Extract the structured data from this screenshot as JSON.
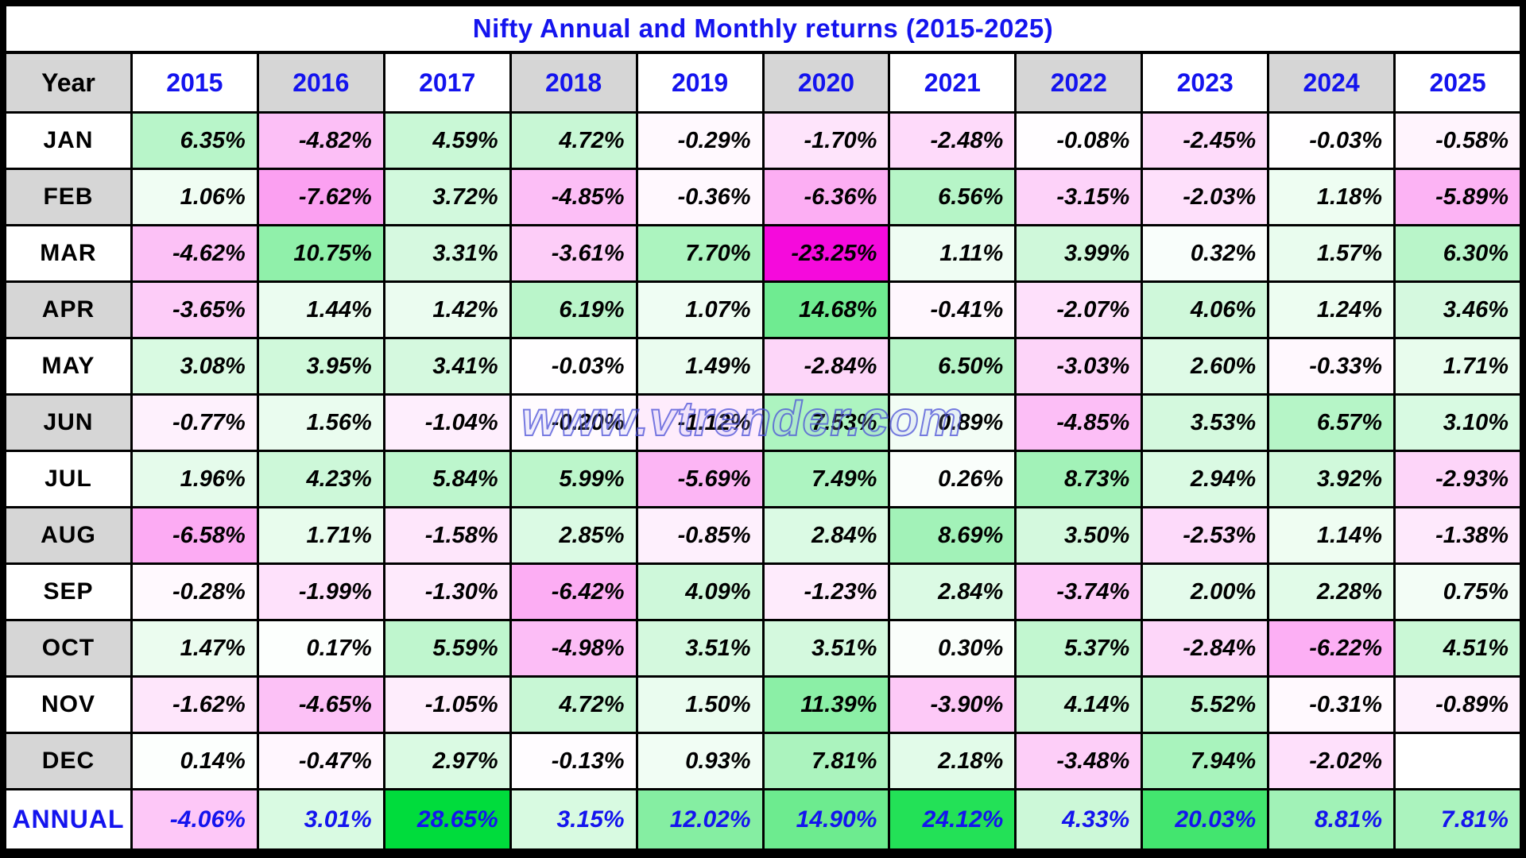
{
  "title": "Nifty Annual and Monthly returns (2015-2025)",
  "watermark": "www.vtrender.com",
  "chart_data": {
    "type": "heatmap",
    "title": "Nifty Annual and Monthly returns (2015-2025)",
    "unit": "%",
    "corner_label": "Year",
    "columns": [
      "2015",
      "2016",
      "2017",
      "2018",
      "2019",
      "2020",
      "2021",
      "2022",
      "2023",
      "2024",
      "2025"
    ],
    "rows": [
      "JAN",
      "FEB",
      "MAR",
      "APR",
      "MAY",
      "JUN",
      "JUL",
      "AUG",
      "SEP",
      "OCT",
      "NOV",
      "DEC"
    ],
    "annual_label": "ANNUAL",
    "values": [
      [
        6.35,
        -4.82,
        4.59,
        4.72,
        -0.29,
        -1.7,
        -2.48,
        -0.08,
        -2.45,
        -0.03,
        -0.58
      ],
      [
        1.06,
        -7.62,
        3.72,
        -4.85,
        -0.36,
        -6.36,
        6.56,
        -3.15,
        -2.03,
        1.18,
        -5.89
      ],
      [
        -4.62,
        10.75,
        3.31,
        -3.61,
        7.7,
        -23.25,
        1.11,
        3.99,
        0.32,
        1.57,
        6.3
      ],
      [
        -3.65,
        1.44,
        1.42,
        6.19,
        1.07,
        14.68,
        -0.41,
        -2.07,
        4.06,
        1.24,
        3.46
      ],
      [
        3.08,
        3.95,
        3.41,
        -0.03,
        1.49,
        -2.84,
        6.5,
        -3.03,
        2.6,
        -0.33,
        1.71
      ],
      [
        -0.77,
        1.56,
        -1.04,
        -0.2,
        -1.12,
        7.53,
        0.89,
        -4.85,
        3.53,
        6.57,
        3.1
      ],
      [
        1.96,
        4.23,
        5.84,
        5.99,
        -5.69,
        7.49,
        0.26,
        8.73,
        2.94,
        3.92,
        -2.93
      ],
      [
        -6.58,
        1.71,
        -1.58,
        2.85,
        -0.85,
        2.84,
        8.69,
        3.5,
        -2.53,
        1.14,
        -1.38
      ],
      [
        -0.28,
        -1.99,
        -1.3,
        -6.42,
        4.09,
        -1.23,
        2.84,
        -3.74,
        2.0,
        2.28,
        0.75
      ],
      [
        1.47,
        0.17,
        5.59,
        -4.98,
        3.51,
        3.51,
        0.3,
        5.37,
        -2.84,
        -6.22,
        4.51
      ],
      [
        -1.62,
        -4.65,
        -1.05,
        4.72,
        1.5,
        11.39,
        -3.9,
        4.14,
        5.52,
        -0.31,
        -0.89
      ],
      [
        0.14,
        -0.47,
        2.97,
        -0.13,
        0.93,
        7.81,
        2.18,
        -3.48,
        7.94,
        -2.02,
        null
      ]
    ],
    "annual_values": [
      -4.06,
      3.01,
      28.65,
      3.15,
      12.02,
      14.9,
      24.12,
      4.33,
      20.03,
      8.81,
      7.81
    ],
    "color_scale": {
      "negative_extreme": -23.25,
      "positive_extreme": 28.65,
      "negative_color": "#F50ADC",
      "positive_color": "#00DC3C",
      "neutral_color": "#FFFFFF"
    },
    "style_colors": {
      "title_text": "#1414EE",
      "year_header_text": "#1414EE",
      "annual_text": "#1414EE",
      "month_value_text": "#000000",
      "gray_band": "#D6D6D6",
      "grid_line": "#000000"
    }
  }
}
